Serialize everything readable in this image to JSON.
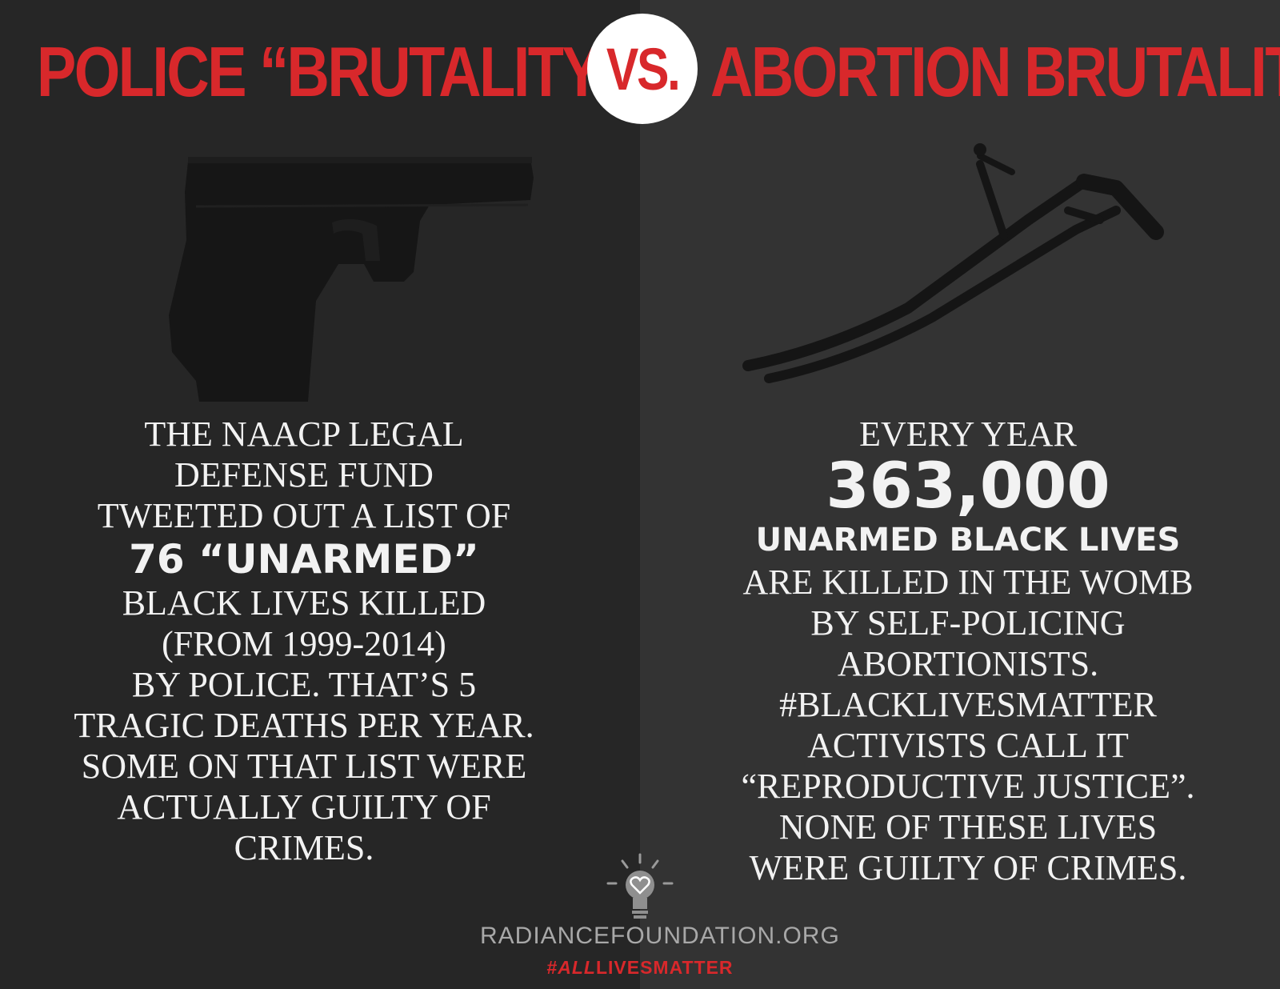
{
  "header": {
    "left_title": "POLICE “BRUTALITY”",
    "vs_label": "VS.",
    "right_title": "ABORTION BRUTALITY"
  },
  "colors": {
    "accent_red": "#d8282b",
    "left_panel": "#262626",
    "right_panel": "#333333",
    "text": "#f2f2f2"
  },
  "left_panel": {
    "image_icon": "pistol-icon",
    "lines": [
      "THE NAACP LEGAL",
      "DEFENSE FUND",
      "TWEETED OUT A LIST OF",
      "76 “UNARMED”",
      "BLACK LIVES KILLED",
      "(FROM 1999-2014)",
      "BY POLICE. THAT’S 5",
      "TRAGIC DEATHS PER YEAR.",
      "SOME ON THAT LIST WERE",
      "ACTUALLY GUILTY OF",
      "CRIMES."
    ]
  },
  "right_panel": {
    "image_icon": "speculum-icon",
    "lines": [
      "EVERY YEAR",
      "363,000",
      "UNARMED BLACK LIVES",
      "ARE KILLED IN THE WOMB",
      "BY SELF-POLICING",
      "ABORTIONISTS.",
      "#BLACKLIVESMATTER",
      "ACTIVISTS CALL IT",
      "“REPRODUCTIVE JUSTICE”.",
      "NONE OF THESE LIVES",
      "WERE GUILTY OF CRIMES."
    ]
  },
  "footer": {
    "logo_icon": "lightbulb-heart-icon",
    "site": "RADIANCEFOUNDATION.ORG",
    "tag_prefix": "#",
    "tag_emphasis": "ALL",
    "tag_rest": "LIVESMATTER"
  }
}
